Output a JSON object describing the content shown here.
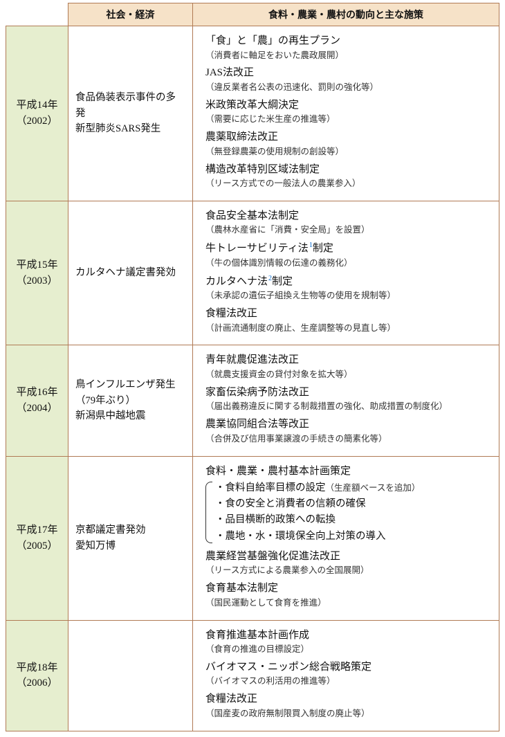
{
  "colors": {
    "border": "#b07a54",
    "header_bg": "#f6e2c8",
    "year_bg": "#e6eecf",
    "ref": "#0066cc"
  },
  "headers": {
    "year": "",
    "society": "社会・経済",
    "policy": "食料・農業・農村の動向と主な施策"
  },
  "rows": [
    {
      "year_line1": "平成14年",
      "year_line2": "（2002）",
      "society": [
        "食品偽装表示事件の多発",
        "新型肺炎SARS発生"
      ],
      "policy": [
        {
          "title": "「食」と「農」の再生プラン",
          "note": "（消費者に軸足をおいた農政展開）"
        },
        {
          "title": "JAS法改正",
          "note": "（違反業者名公表の迅速化、罰則の強化等）"
        },
        {
          "title": "米政策改革大綱決定",
          "note": "（需要に応じた米生産の推進等）"
        },
        {
          "title": "農薬取締法改正",
          "note": "（無登録農薬の使用規制の創設等）"
        },
        {
          "title": "構造改革特別区域法制定",
          "note": "（リース方式での一般法人の農業参入）"
        }
      ]
    },
    {
      "year_line1": "平成15年",
      "year_line2": "（2003）",
      "society": [
        "カルタヘナ議定書発効"
      ],
      "policy": [
        {
          "title": "食品安全基本法制定",
          "note": "（農林水産省に「消費・安全局」を設置）"
        },
        {
          "title_pre": "牛トレーサビリティ法",
          "ref": "1",
          "title_post": "制定",
          "note": "（牛の個体識別情報の伝達の義務化）"
        },
        {
          "title_pre": "カルタヘナ法",
          "ref": "2",
          "title_post": "制定",
          "note": "（未承認の遺伝子組換え生物等の使用を規制等）"
        },
        {
          "title": "食糧法改正",
          "note": "（計画流通制度の廃止、生産調整等の見直し等）"
        }
      ]
    },
    {
      "year_line1": "平成16年",
      "year_line2": "（2004）",
      "society": [
        "鳥インフルエンザ発生（79年ぶり）",
        "新潟県中越地震"
      ],
      "policy": [
        {
          "title": "青年就農促進法改正",
          "note": "（就農支援資金の貸付対象を拡大等）"
        },
        {
          "title": "家畜伝染病予防法改正",
          "note": "（届出義務違反に関する制裁措置の強化、助成措置の制度化）"
        },
        {
          "title": "農業協同組合法等改正",
          "note": "（合併及び信用事業譲渡の手続きの簡素化等）"
        }
      ]
    },
    {
      "year_line1": "平成17年",
      "year_line2": "（2005）",
      "society": [
        "京都議定書発効",
        "愛知万博"
      ],
      "policy": [
        {
          "title": "食料・農業・農村基本計画策定",
          "bullets": [
            {
              "text": "・食料自給率目標の設定",
              "inline_note": "（生産額ベースを追加）"
            },
            {
              "text": "・食の安全と消費者の信頼の確保"
            },
            {
              "text": "・品目横断的政策への転換"
            },
            {
              "text": "・農地・水・環境保全向上対策の導入"
            }
          ]
        },
        {
          "title": "農業経営基盤強化促進法改正",
          "note": "（リース方式による農業参入の全国展開）"
        },
        {
          "title": "食育基本法制定",
          "note": "（国民運動として食育を推進）"
        }
      ]
    },
    {
      "year_line1": "平成18年",
      "year_line2": "（2006）",
      "society": [],
      "policy": [
        {
          "title": "食育推進基本計画作成",
          "note": "（食育の推進の目標設定）"
        },
        {
          "title": "バイオマス・ニッポン総合戦略策定",
          "note": "（バイオマスの利活用の推進等）"
        },
        {
          "title": "食糧法改正",
          "note": "（国産麦の政府無制限買入制度の廃止等）"
        }
      ]
    }
  ]
}
